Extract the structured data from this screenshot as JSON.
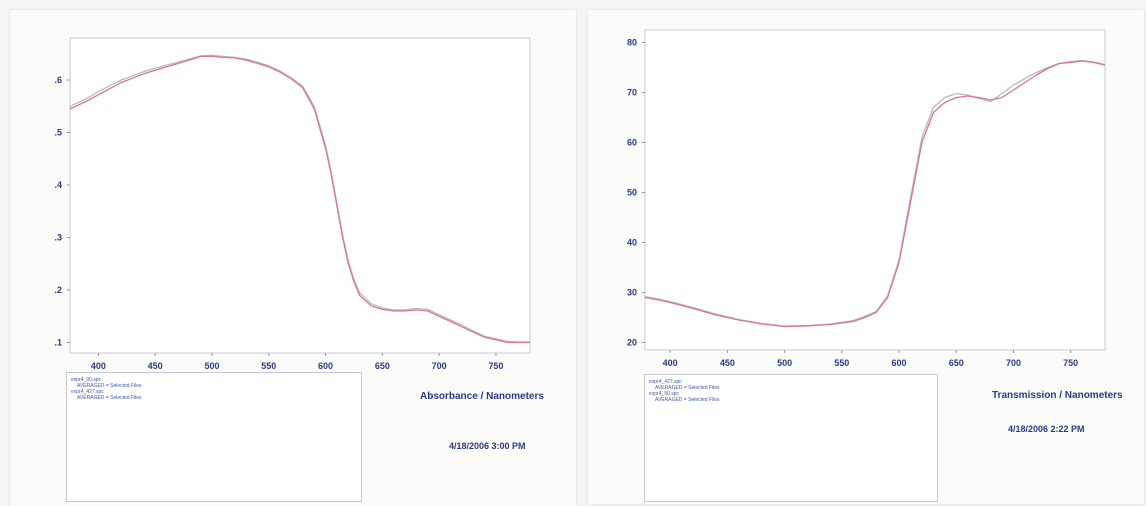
{
  "chart_data": [
    {
      "type": "line",
      "xlabel": "Absorbance / Nanometers",
      "x_ticks": [
        "400",
        "450",
        "500",
        "550",
        "600",
        "650",
        "700",
        "750"
      ],
      "y_ticks": [
        ".6",
        ".5",
        ".4",
        ".3",
        ".2",
        ".1"
      ],
      "xlim": [
        375,
        780
      ],
      "ylim": [
        0.08,
        0.68
      ],
      "grid": false,
      "timestamp": "4/18/2006 3:00 PM",
      "legend": [
        "expr4_90.spc",
        "AVERAGED = Selected Files",
        "expr4_427.spc",
        "AVERAGED = Selected Files"
      ],
      "colors": [
        "#d9788a",
        "#b8b8c8"
      ],
      "series": [
        {
          "x": [
            375,
            390,
            400,
            420,
            440,
            460,
            480,
            490,
            500,
            510,
            520,
            530,
            540,
            550,
            560,
            570,
            580,
            590,
            600,
            605,
            610,
            615,
            620,
            625,
            630,
            640,
            650,
            660,
            670,
            680,
            690,
            700,
            710,
            720,
            730,
            740,
            750,
            760,
            770,
            780
          ],
          "y": [
            0.545,
            0.56,
            0.572,
            0.595,
            0.612,
            0.625,
            0.638,
            0.645,
            0.645,
            0.643,
            0.642,
            0.638,
            0.632,
            0.625,
            0.615,
            0.602,
            0.585,
            0.545,
            0.47,
            0.42,
            0.36,
            0.3,
            0.25,
            0.215,
            0.19,
            0.17,
            0.163,
            0.16,
            0.16,
            0.162,
            0.16,
            0.15,
            0.14,
            0.13,
            0.12,
            0.11,
            0.105,
            0.1,
            0.1,
            0.1
          ]
        },
        {
          "x": [
            375,
            390,
            400,
            420,
            440,
            460,
            480,
            490,
            500,
            510,
            520,
            530,
            540,
            550,
            560,
            570,
            580,
            590,
            600,
            605,
            610,
            615,
            620,
            625,
            630,
            640,
            650,
            660,
            670,
            680,
            690,
            700,
            710,
            720,
            730,
            740,
            750,
            760,
            770,
            780
          ],
          "y": [
            0.55,
            0.565,
            0.578,
            0.6,
            0.616,
            0.628,
            0.64,
            0.646,
            0.647,
            0.645,
            0.643,
            0.64,
            0.634,
            0.627,
            0.617,
            0.604,
            0.588,
            0.55,
            0.475,
            0.425,
            0.365,
            0.305,
            0.255,
            0.22,
            0.195,
            0.174,
            0.166,
            0.162,
            0.162,
            0.165,
            0.163,
            0.153,
            0.143,
            0.133,
            0.122,
            0.112,
            0.107,
            0.102,
            0.101,
            0.101
          ]
        }
      ]
    },
    {
      "type": "line",
      "xlabel": "Transmission / Nanometers",
      "x_ticks": [
        "400",
        "450",
        "500",
        "550",
        "600",
        "650",
        "700",
        "750"
      ],
      "y_ticks": [
        "80",
        "70",
        "60",
        "50",
        "40",
        "30",
        "20"
      ],
      "xlim": [
        378,
        780
      ],
      "ylim": [
        18.5,
        82.5
      ],
      "grid": false,
      "timestamp": "4/18/2006 2:22 PM",
      "legend": [
        "expr4_427.spc",
        "AVERAGED = Selected Files",
        "expr4_90.spc",
        "AVERAGED = Selected Files"
      ],
      "colors": [
        "#d9788a",
        "#b8b8c8"
      ],
      "series": [
        {
          "x": [
            378,
            390,
            400,
            420,
            440,
            460,
            480,
            500,
            520,
            540,
            560,
            570,
            580,
            590,
            600,
            610,
            620,
            630,
            640,
            650,
            660,
            670,
            680,
            690,
            700,
            710,
            720,
            730,
            740,
            750,
            760,
            770,
            780
          ],
          "y": [
            29.0,
            28.5,
            28.0,
            26.8,
            25.5,
            24.5,
            23.7,
            23.2,
            23.3,
            23.6,
            24.2,
            25.0,
            26.0,
            29.0,
            36.0,
            48.0,
            60.0,
            66.0,
            68.0,
            69.0,
            69.3,
            69.0,
            68.5,
            69.0,
            70.5,
            72.0,
            73.5,
            74.8,
            75.8,
            76.0,
            76.3,
            76.0,
            75.5
          ]
        },
        {
          "x": [
            378,
            390,
            400,
            420,
            440,
            460,
            480,
            500,
            520,
            540,
            560,
            570,
            580,
            590,
            600,
            610,
            620,
            630,
            640,
            650,
            660,
            670,
            680,
            690,
            700,
            710,
            720,
            730,
            740,
            750,
            760,
            770,
            780
          ],
          "y": [
            29.2,
            28.7,
            28.2,
            27.0,
            25.7,
            24.6,
            23.8,
            23.3,
            23.4,
            23.7,
            24.4,
            25.2,
            26.2,
            29.3,
            36.5,
            49.0,
            61.0,
            67.0,
            69.0,
            69.8,
            69.5,
            68.8,
            68.2,
            69.8,
            71.5,
            72.8,
            74.0,
            75.0,
            75.8,
            76.2,
            76.4,
            76.1,
            75.6
          ]
        }
      ]
    }
  ]
}
